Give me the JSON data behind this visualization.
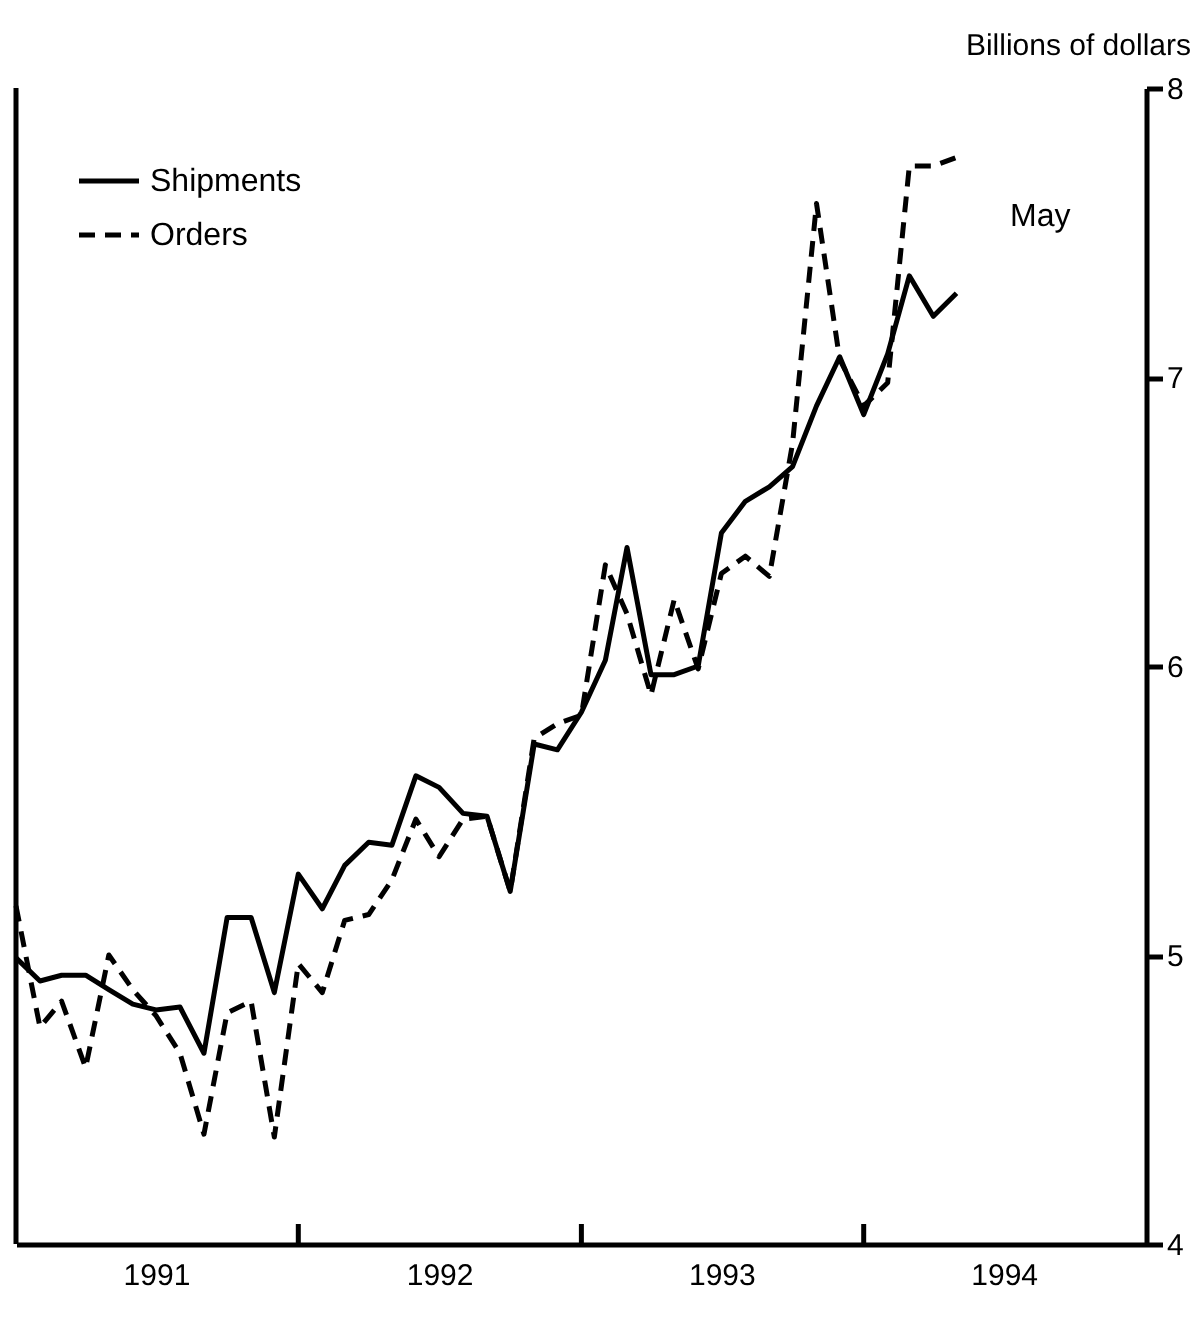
{
  "chart_data": {
    "type": "line",
    "ylabel": "Billions of dollars",
    "x": [
      "1991-01",
      "1991-02",
      "1991-03",
      "1991-04",
      "1991-05",
      "1991-06",
      "1991-07",
      "1991-08",
      "1991-09",
      "1991-10",
      "1991-11",
      "1991-12",
      "1992-01",
      "1992-02",
      "1992-03",
      "1992-04",
      "1992-05",
      "1992-06",
      "1992-07",
      "1992-08",
      "1992-09",
      "1992-10",
      "1992-11",
      "1992-12",
      "1993-01",
      "1993-02",
      "1993-03",
      "1993-04",
      "1993-05",
      "1993-06",
      "1993-07",
      "1993-08",
      "1993-09",
      "1993-10",
      "1993-11",
      "1993-12",
      "1994-01",
      "1994-02",
      "1994-03",
      "1994-04",
      "1994-05"
    ],
    "series": [
      {
        "name": "Shipments",
        "color": "#000000",
        "line_style": "solid",
        "values": [
          4.99,
          4.91,
          4.93,
          4.93,
          4.88,
          4.83,
          4.81,
          4.82,
          4.66,
          5.13,
          5.13,
          4.87,
          5.28,
          5.16,
          5.31,
          5.39,
          5.38,
          5.62,
          5.58,
          5.49,
          5.48,
          5.22,
          5.73,
          5.71,
          5.84,
          6.02,
          6.41,
          5.97,
          5.97,
          6.0,
          6.46,
          6.57,
          6.62,
          6.69,
          6.9,
          7.07,
          6.87,
          7.08,
          7.35,
          7.21,
          7.29
        ]
      },
      {
        "name": "Orders",
        "color": "#000000",
        "line_style": "dashed",
        "values": [
          5.17,
          4.75,
          4.84,
          4.61,
          5.0,
          4.88,
          4.79,
          4.66,
          4.38,
          4.8,
          4.84,
          4.37,
          4.97,
          4.87,
          5.12,
          5.14,
          5.26,
          5.47,
          5.34,
          5.47,
          5.48,
          5.22,
          5.75,
          5.8,
          5.83,
          6.35,
          6.18,
          5.9,
          6.23,
          5.99,
          6.32,
          6.38,
          6.31,
          6.77,
          7.6,
          7.06,
          6.9,
          6.98,
          7.73,
          7.73,
          7.76
        ]
      }
    ],
    "xlim": [
      "1991-01",
      "1995-01"
    ],
    "xticks": [
      {
        "value": "1991-07",
        "label": "1991"
      },
      {
        "value": "1992-01",
        "label": null
      },
      {
        "value": "1992-07",
        "label": "1992"
      },
      {
        "value": "1993-01",
        "label": null
      },
      {
        "value": "1993-07",
        "label": "1993"
      },
      {
        "value": "1994-01",
        "label": null
      },
      {
        "value": "1994-07",
        "label": "1994"
      }
    ],
    "ylim": [
      4,
      8
    ],
    "yticks": [
      4,
      5,
      6,
      7,
      8
    ],
    "annotations": [
      "May"
    ],
    "legend": "top left",
    "grid": false
  }
}
